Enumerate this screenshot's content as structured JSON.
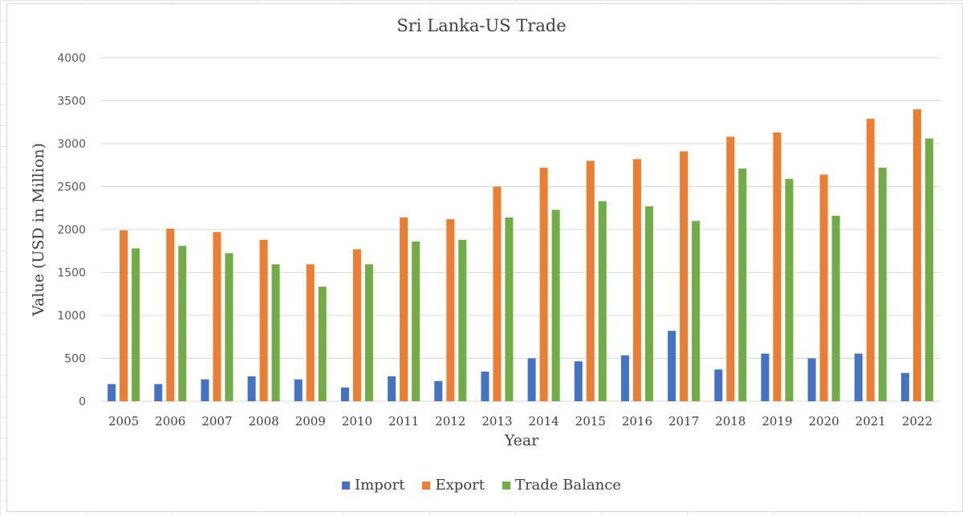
{
  "chart_data": {
    "type": "bar",
    "title": "Sri Lanka-US Trade",
    "xlabel": "Year",
    "ylabel": "Value (USD in Million)",
    "ylim": [
      0,
      4000
    ],
    "yticks": [
      "0",
      "500",
      "1000",
      "1500",
      "2000",
      "2500",
      "3000",
      "3500",
      "4000"
    ],
    "grid": "horizontal",
    "legend_position": "bottom",
    "categories": [
      "2005",
      "2006",
      "2007",
      "2008",
      "2009",
      "2010",
      "2011",
      "2012",
      "2013",
      "2014",
      "2015",
      "2016",
      "2017",
      "2018",
      "2019",
      "2020",
      "2021",
      "2022"
    ],
    "series": [
      {
        "name": "Import",
        "color": "#4472c4",
        "values": [
          200,
          200,
          255,
          290,
          255,
          160,
          290,
          235,
          345,
          500,
          465,
          535,
          820,
          370,
          555,
          500,
          555,
          330
        ]
      },
      {
        "name": "Export",
        "color": "#ed7d31",
        "values": [
          1990,
          2010,
          1970,
          1880,
          1595,
          1770,
          2140,
          2120,
          2500,
          2720,
          2800,
          2820,
          2910,
          3080,
          3130,
          2640,
          3290,
          3400
        ]
      },
      {
        "name": "Trade Balance",
        "color": "#70ad47",
        "values": [
          1780,
          1810,
          1725,
          1595,
          1335,
          1595,
          1860,
          1880,
          2140,
          2230,
          2330,
          2270,
          2100,
          2710,
          2590,
          2160,
          2720,
          3060
        ]
      }
    ]
  }
}
